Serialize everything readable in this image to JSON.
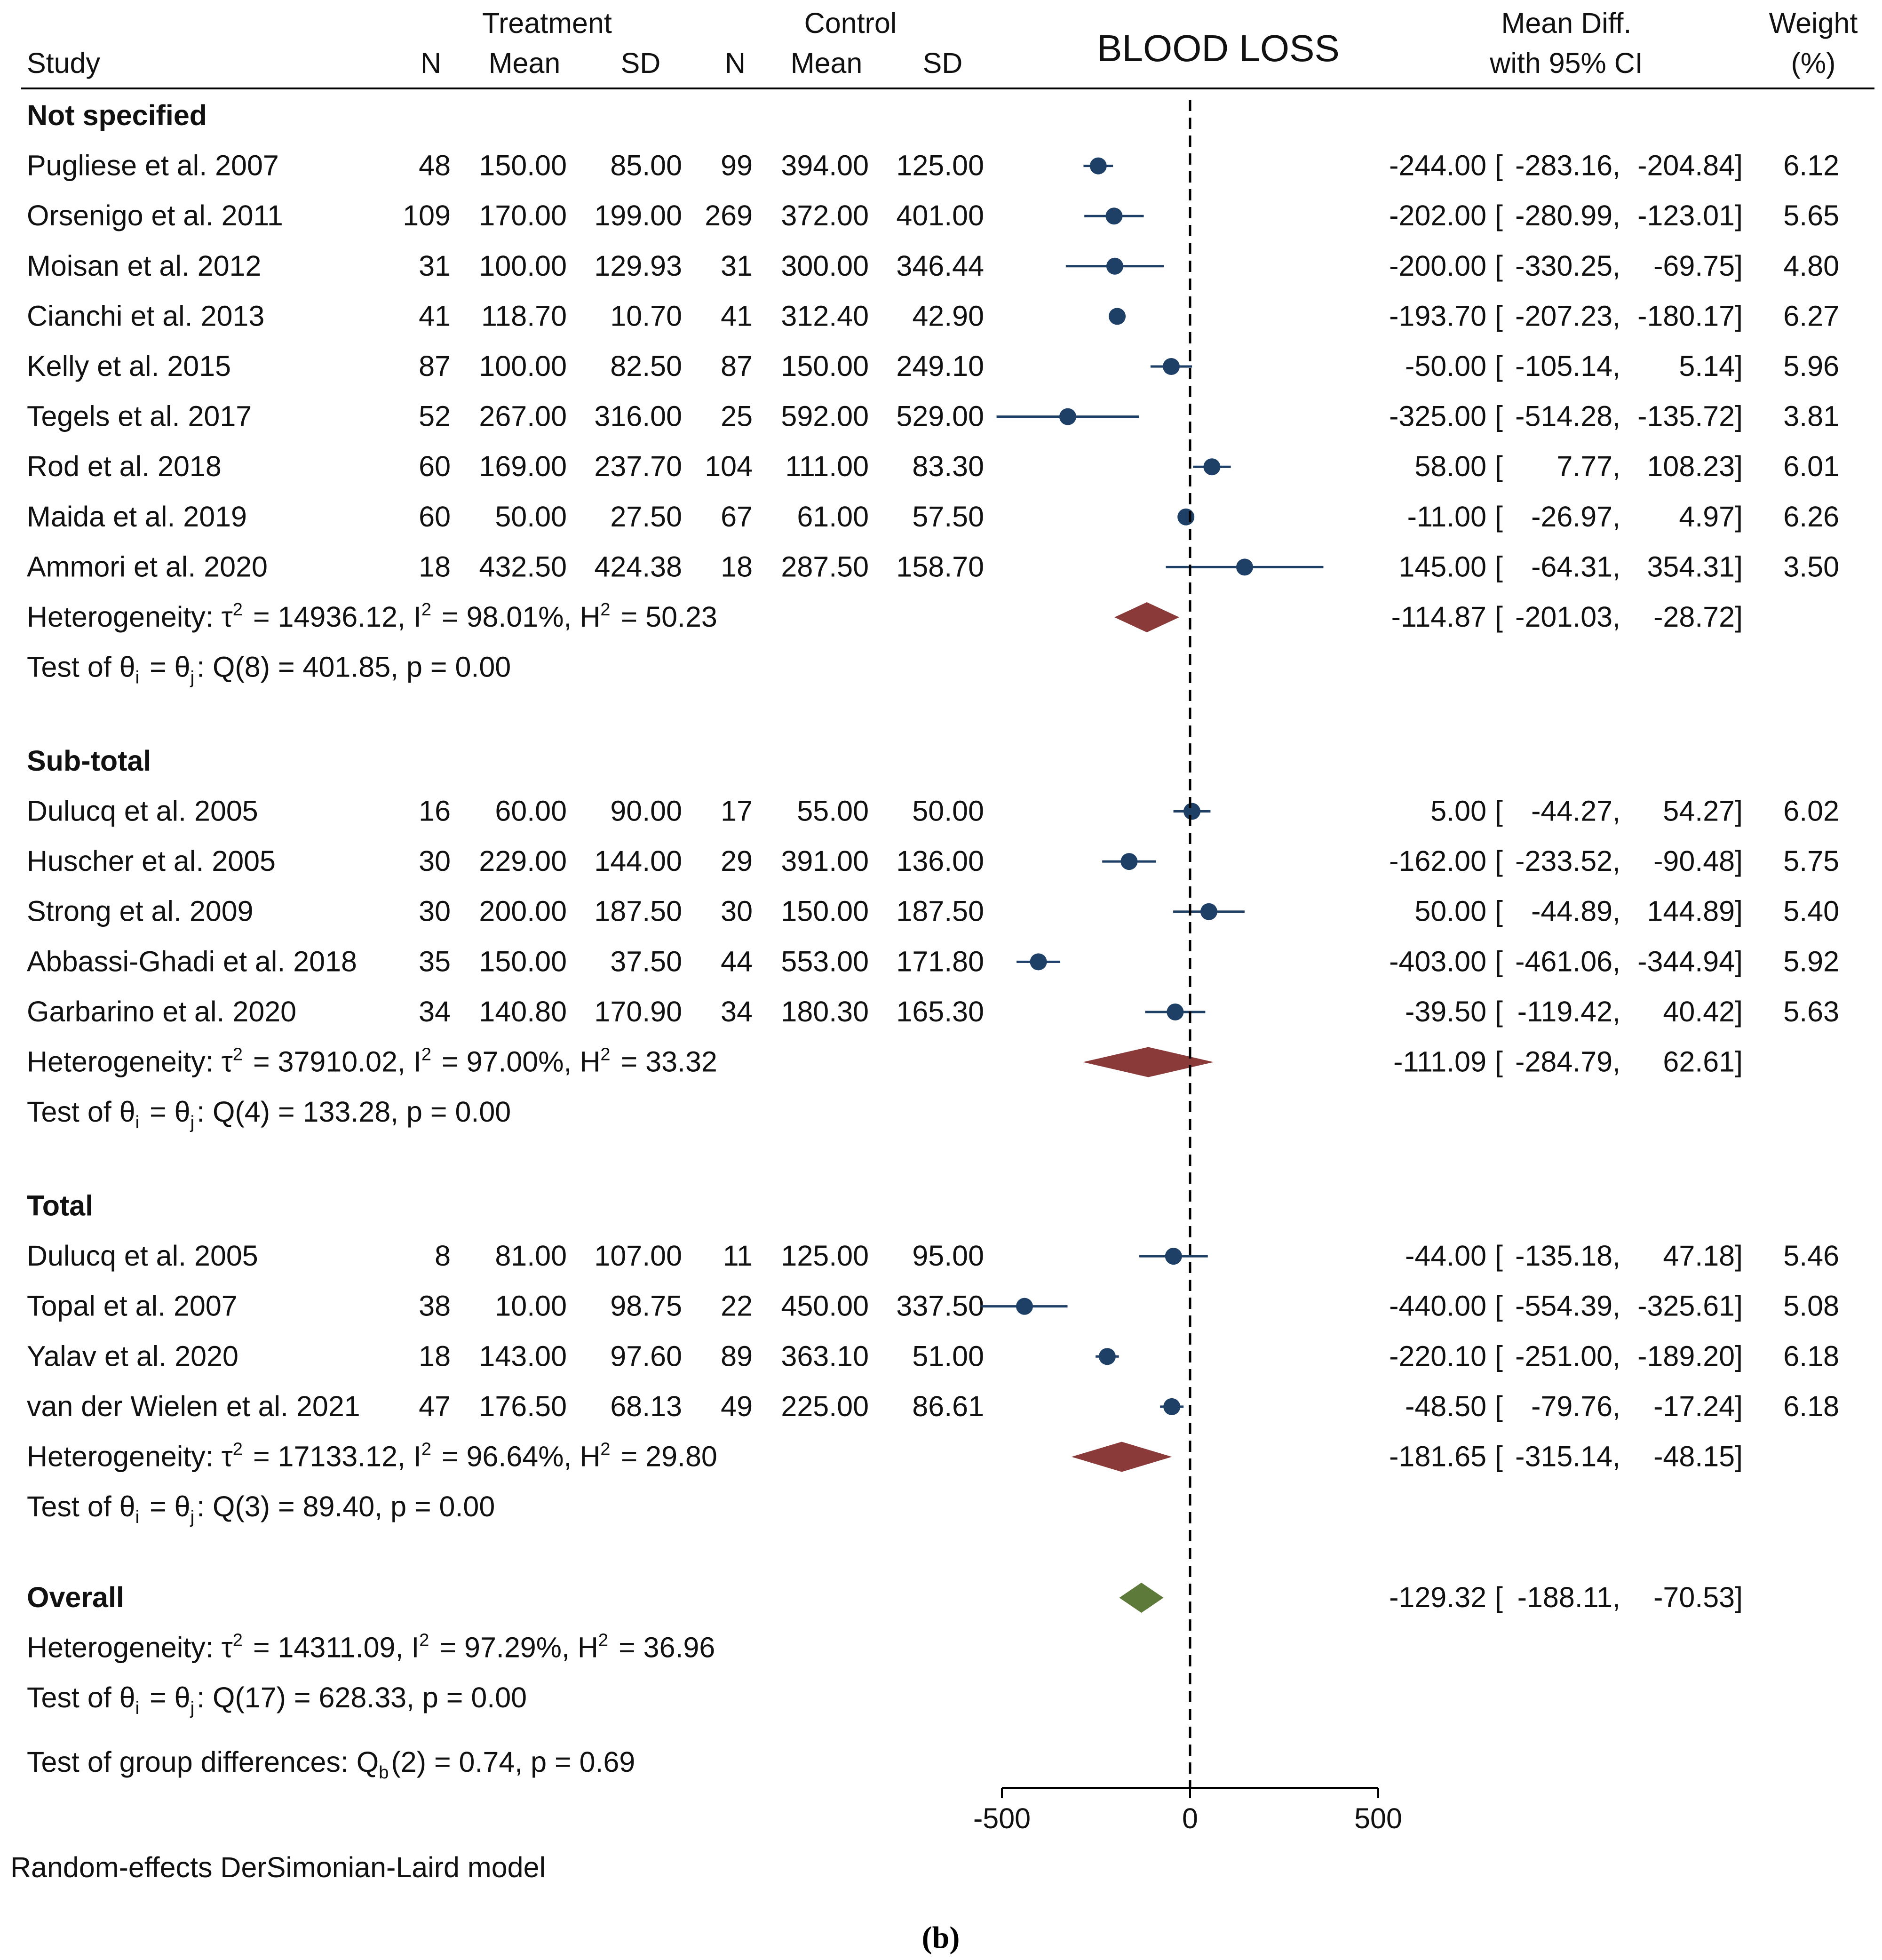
{
  "chart_data": {
    "type": "forest",
    "title": "BLOOD LOSS",
    "header": {
      "study": "Study",
      "treatment": "Treatment",
      "control": "Control",
      "n": "N",
      "mean": "Mean",
      "sd": "SD",
      "effect_line1": "Mean Diff.",
      "effect_line2": "with 95% CI",
      "weight_line1": "Weight",
      "weight_line2": "(%)"
    },
    "axis": {
      "min": -500,
      "max": 500,
      "reference": 0,
      "ticks": [
        -500,
        0,
        500
      ],
      "tick_labels": [
        "-500",
        "0",
        "500"
      ]
    },
    "colors": {
      "study_marker": "#1e3f66",
      "subgroup_diamond": "#8b3a3a",
      "overall_diamond": "#5e7a3a"
    },
    "groups": [
      {
        "name": "Not specified",
        "studies": [
          {
            "study": "Pugliese et al. 2007",
            "t_n": "48",
            "t_mean": "150.00",
            "t_sd": "85.00",
            "c_n": "99",
            "c_mean": "394.00",
            "c_sd": "125.00",
            "md": -244.0,
            "lo": -283.16,
            "hi": -204.84,
            "md_label": "-244.00",
            "lo_label": "-283.16,",
            "hi_label": "-204.84]",
            "weight": "6.12"
          },
          {
            "study": "Orsenigo et al. 2011",
            "t_n": "109",
            "t_mean": "170.00",
            "t_sd": "199.00",
            "c_n": "269",
            "c_mean": "372.00",
            "c_sd": "401.00",
            "md": -202.0,
            "lo": -280.99,
            "hi": -123.01,
            "md_label": "-202.00",
            "lo_label": "-280.99,",
            "hi_label": "-123.01]",
            "weight": "5.65"
          },
          {
            "study": "Moisan et al. 2012",
            "t_n": "31",
            "t_mean": "100.00",
            "t_sd": "129.93",
            "c_n": "31",
            "c_mean": "300.00",
            "c_sd": "346.44",
            "md": -200.0,
            "lo": -330.25,
            "hi": -69.75,
            "md_label": "-200.00",
            "lo_label": "-330.25,",
            "hi_label": "-69.75]",
            "weight": "4.80"
          },
          {
            "study": "Cianchi et al. 2013",
            "t_n": "41",
            "t_mean": "118.70",
            "t_sd": "10.70",
            "c_n": "41",
            "c_mean": "312.40",
            "c_sd": "42.90",
            "md": -193.7,
            "lo": -207.23,
            "hi": -180.17,
            "md_label": "-193.70",
            "lo_label": "-207.23,",
            "hi_label": "-180.17]",
            "weight": "6.27"
          },
          {
            "study": "Kelly et al. 2015",
            "t_n": "87",
            "t_mean": "100.00",
            "t_sd": "82.50",
            "c_n": "87",
            "c_mean": "150.00",
            "c_sd": "249.10",
            "md": -50.0,
            "lo": -105.14,
            "hi": 5.14,
            "md_label": "-50.00",
            "lo_label": "-105.14,",
            "hi_label": "5.14]",
            "weight": "5.96"
          },
          {
            "study": "Tegels et al. 2017",
            "t_n": "52",
            "t_mean": "267.00",
            "t_sd": "316.00",
            "c_n": "25",
            "c_mean": "592.00",
            "c_sd": "529.00",
            "md": -325.0,
            "lo": -514.28,
            "hi": -135.72,
            "md_label": "-325.00",
            "lo_label": "-514.28,",
            "hi_label": "-135.72]",
            "weight": "3.81"
          },
          {
            "study": "Rod et al. 2018",
            "t_n": "60",
            "t_mean": "169.00",
            "t_sd": "237.70",
            "c_n": "104",
            "c_mean": "111.00",
            "c_sd": "83.30",
            "md": 58.0,
            "lo": 7.77,
            "hi": 108.23,
            "md_label": "58.00",
            "lo_label": "7.77,",
            "hi_label": "108.23]",
            "weight": "6.01"
          },
          {
            "study": "Maida et al. 2019",
            "t_n": "60",
            "t_mean": "50.00",
            "t_sd": "27.50",
            "c_n": "67",
            "c_mean": "61.00",
            "c_sd": "57.50",
            "md": -11.0,
            "lo": -26.97,
            "hi": 4.97,
            "md_label": "-11.00",
            "lo_label": "-26.97,",
            "hi_label": "4.97]",
            "weight": "6.26"
          },
          {
            "study": "Ammori et al. 2020",
            "t_n": "18",
            "t_mean": "432.50",
            "t_sd": "424.38",
            "c_n": "18",
            "c_mean": "287.50",
            "c_sd": "158.70",
            "md": 145.0,
            "lo": -64.31,
            "hi": 354.31,
            "md_label": "145.00",
            "lo_label": "-64.31,",
            "hi_label": "354.31]",
            "weight": "3.50"
          }
        ],
        "het": {
          "tau2": "14936.12",
          "i2": "98.01%",
          "h2": "50.23"
        },
        "test": {
          "df": "8",
          "q": "401.85",
          "p": "0.00"
        },
        "summary": {
          "md": -114.87,
          "lo": -201.03,
          "hi": -28.72,
          "md_label": "-114.87",
          "lo_label": "-201.03,",
          "hi_label": "-28.72]"
        }
      },
      {
        "name": "Sub-total",
        "studies": [
          {
            "study": "Dulucq et al. 2005",
            "t_n": "16",
            "t_mean": "60.00",
            "t_sd": "90.00",
            "c_n": "17",
            "c_mean": "55.00",
            "c_sd": "50.00",
            "md": 5.0,
            "lo": -44.27,
            "hi": 54.27,
            "md_label": "5.00",
            "lo_label": "-44.27,",
            "hi_label": "54.27]",
            "weight": "6.02"
          },
          {
            "study": "Huscher et al. 2005",
            "t_n": "30",
            "t_mean": "229.00",
            "t_sd": "144.00",
            "c_n": "29",
            "c_mean": "391.00",
            "c_sd": "136.00",
            "md": -162.0,
            "lo": -233.52,
            "hi": -90.48,
            "md_label": "-162.00",
            "lo_label": "-233.52,",
            "hi_label": "-90.48]",
            "weight": "5.75"
          },
          {
            "study": "Strong et al. 2009",
            "t_n": "30",
            "t_mean": "200.00",
            "t_sd": "187.50",
            "c_n": "30",
            "c_mean": "150.00",
            "c_sd": "187.50",
            "md": 50.0,
            "lo": -44.89,
            "hi": 144.89,
            "md_label": "50.00",
            "lo_label": "-44.89,",
            "hi_label": "144.89]",
            "weight": "5.40"
          },
          {
            "study": "Abbassi-Ghadi et al. 2018",
            "t_n": "35",
            "t_mean": "150.00",
            "t_sd": "37.50",
            "c_n": "44",
            "c_mean": "553.00",
            "c_sd": "171.80",
            "md": -403.0,
            "lo": -461.06,
            "hi": -344.94,
            "md_label": "-403.00",
            "lo_label": "-461.06,",
            "hi_label": "-344.94]",
            "weight": "5.92"
          },
          {
            "study": "Garbarino et al. 2020",
            "t_n": "34",
            "t_mean": "140.80",
            "t_sd": "170.90",
            "c_n": "34",
            "c_mean": "180.30",
            "c_sd": "165.30",
            "md": -39.5,
            "lo": -119.42,
            "hi": 40.42,
            "md_label": "-39.50",
            "lo_label": "-119.42,",
            "hi_label": "40.42]",
            "weight": "5.63"
          }
        ],
        "het": {
          "tau2": "37910.02",
          "i2": "97.00%",
          "h2": "33.32"
        },
        "test": {
          "df": "4",
          "q": "133.28",
          "p": "0.00"
        },
        "summary": {
          "md": -111.09,
          "lo": -284.79,
          "hi": 62.61,
          "md_label": "-111.09",
          "lo_label": "-284.79,",
          "hi_label": "62.61]"
        }
      },
      {
        "name": "Total",
        "studies": [
          {
            "study": "Dulucq et al. 2005",
            "t_n": "8",
            "t_mean": "81.00",
            "t_sd": "107.00",
            "c_n": "11",
            "c_mean": "125.00",
            "c_sd": "95.00",
            "md": -44.0,
            "lo": -135.18,
            "hi": 47.18,
            "md_label": "-44.00",
            "lo_label": "-135.18,",
            "hi_label": "47.18]",
            "weight": "5.46"
          },
          {
            "study": "Topal et al. 2007",
            "t_n": "38",
            "t_mean": "10.00",
            "t_sd": "98.75",
            "c_n": "22",
            "c_mean": "450.00",
            "c_sd": "337.50",
            "md": -440.0,
            "lo": -554.39,
            "hi": -325.61,
            "md_label": "-440.00",
            "lo_label": "-554.39,",
            "hi_label": "-325.61]",
            "weight": "5.08"
          },
          {
            "study": "Yalav et al. 2020",
            "t_n": "18",
            "t_mean": "143.00",
            "t_sd": "97.60",
            "c_n": "89",
            "c_mean": "363.10",
            "c_sd": "51.00",
            "md": -220.1,
            "lo": -251.0,
            "hi": -189.2,
            "md_label": "-220.10",
            "lo_label": "-251.00,",
            "hi_label": "-189.20]",
            "weight": "6.18"
          },
          {
            "study": "van der Wielen et al. 2021",
            "t_n": "47",
            "t_mean": "176.50",
            "t_sd": "68.13",
            "c_n": "49",
            "c_mean": "225.00",
            "c_sd": "86.61",
            "md": -48.5,
            "lo": -79.76,
            "hi": -17.24,
            "md_label": "-48.50",
            "lo_label": "-79.76,",
            "hi_label": "-17.24]",
            "weight": "6.18"
          }
        ],
        "het": {
          "tau2": "17133.12",
          "i2": "96.64%",
          "h2": "29.80"
        },
        "test": {
          "df": "3",
          "q": "89.40",
          "p": "0.00"
        },
        "summary": {
          "md": -181.65,
          "lo": -315.14,
          "hi": -48.15,
          "md_label": "-181.65",
          "lo_label": "-315.14,",
          "hi_label": "-48.15]"
        }
      }
    ],
    "overall": {
      "label": "Overall",
      "md": -129.32,
      "lo": -188.11,
      "hi": -70.53,
      "md_label": "-129.32",
      "lo_label": "-188.11,",
      "hi_label": "-70.53]",
      "het": {
        "tau2": "14311.09",
        "i2": "97.29%",
        "h2": "36.96"
      },
      "test": {
        "df": "17",
        "q": "628.33",
        "p": "0.00"
      }
    },
    "group_test": {
      "df": "2",
      "q": "0.74",
      "p": "0.69"
    },
    "model_note": "Random-effects DerSimonian-Laird model",
    "panel_label": "(b)"
  }
}
